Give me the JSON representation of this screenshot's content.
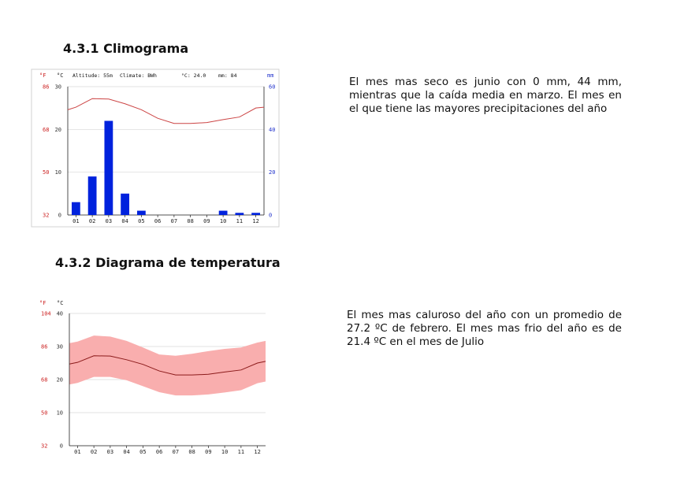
{
  "section1": {
    "title": "4.3.1 Climograma",
    "text": "El mes mas seco es junio con 0 mm, 44 mm, mientras que la caída media en marzo. El mes en el que tiene las mayores precipitaciones del año"
  },
  "section2": {
    "title": "4.3.2 Diagrama de temperatura",
    "text": "El mes mas caluroso del año con un promedio de 27.2 ºC de febrero. El mes mas frio del año es de 21.4 ºC en el mes de Julio"
  },
  "colors": {
    "fahrenheit_axis": "#cc2222",
    "precip_axis": "#2233cc",
    "bar": "#0022dd",
    "temp_line_1": "#cc4444",
    "temp_band": "#f9aeae",
    "temp_line_2": "#8b1a1a"
  },
  "chart_data": [
    {
      "type": "bar",
      "header": {
        "unit_f": "°F",
        "unit_c": "°C",
        "unit_mm": "mm",
        "altitude": "Altitude: 55m",
        "climate": "Climate: BWh",
        "avg_temp": "°C: 24.0",
        "precip": "mm: 84"
      },
      "categories": [
        "01",
        "02",
        "03",
        "04",
        "05",
        "06",
        "07",
        "08",
        "09",
        "10",
        "11",
        "12"
      ],
      "series": [
        {
          "values": [
            6,
            18,
            44,
            10,
            2,
            0,
            0,
            0,
            0,
            2,
            1,
            1
          ]
        }
      ],
      "line": [
        25.2,
        27.2,
        27.1,
        26.0,
        24.6,
        22.6,
        21.4,
        21.4,
        21.6,
        22.3,
        22.9,
        25.0
      ],
      "yticks_c": [
        "0",
        "10",
        "20",
        "30"
      ],
      "yticks_f": [
        "32",
        "50",
        "68",
        "86"
      ],
      "yticks_mm": [
        "0",
        "20",
        "40",
        "60"
      ],
      "ylim_c": [
        0,
        30
      ],
      "ylim_mm": [
        0,
        60
      ],
      "grid": true
    },
    {
      "type": "area",
      "header": {
        "unit_f": "°F",
        "unit_c": "°C"
      },
      "categories": [
        "01",
        "02",
        "03",
        "04",
        "05",
        "06",
        "07",
        "08",
        "09",
        "10",
        "11",
        "12"
      ],
      "series": [
        {
          "values": [
            25.2,
            27.2,
            27.1,
            26.0,
            24.6,
            22.6,
            21.4,
            21.4,
            21.6,
            22.3,
            22.9,
            25.0
          ]
        }
      ],
      "band_high": [
        31.5,
        33.3,
        33.0,
        31.7,
        29.7,
        27.6,
        27.2,
        27.8,
        28.6,
        29.3,
        29.7,
        31.2
      ],
      "band_low": [
        19.0,
        20.8,
        20.8,
        19.8,
        18.0,
        16.2,
        15.2,
        15.2,
        15.5,
        16.1,
        16.8,
        18.9
      ],
      "yticks_c": [
        "0",
        "10",
        "20",
        "30",
        "40"
      ],
      "yticks_f": [
        "32",
        "50",
        "68",
        "86",
        "104"
      ],
      "ylim_c": [
        0,
        40
      ],
      "grid": true
    }
  ]
}
